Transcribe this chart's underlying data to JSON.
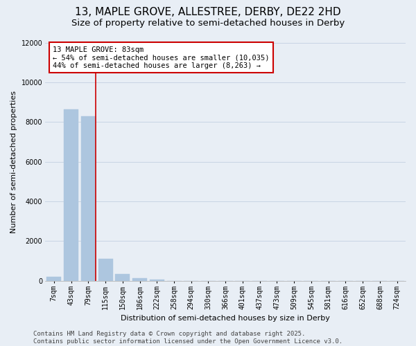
{
  "title_line1": "13, MAPLE GROVE, ALLESTREE, DERBY, DE22 2HD",
  "title_line2": "Size of property relative to semi-detached houses in Derby",
  "xlabel": "Distribution of semi-detached houses by size in Derby",
  "ylabel": "Number of semi-detached properties",
  "categories": [
    "7sqm",
    "43sqm",
    "79sqm",
    "115sqm",
    "150sqm",
    "186sqm",
    "222sqm",
    "258sqm",
    "294sqm",
    "330sqm",
    "366sqm",
    "401sqm",
    "437sqm",
    "473sqm",
    "509sqm",
    "545sqm",
    "581sqm",
    "616sqm",
    "652sqm",
    "688sqm",
    "724sqm"
  ],
  "values": [
    200,
    8650,
    8300,
    1100,
    340,
    120,
    60,
    0,
    0,
    0,
    0,
    0,
    0,
    0,
    0,
    0,
    0,
    0,
    0,
    0,
    0
  ],
  "bar_color": "#adc6df",
  "bar_edge_color": "#adc6df",
  "grid_color": "#c8d4e4",
  "background_color": "#e8eef5",
  "vline_x_index": 2,
  "vline_color": "#cc0000",
  "annotation_text": "13 MAPLE GROVE: 83sqm\n← 54% of semi-detached houses are smaller (10,035)\n44% of semi-detached houses are larger (8,263) →",
  "annotation_box_color": "#ffffff",
  "annotation_border_color": "#cc0000",
  "ylim": [
    0,
    12000
  ],
  "yticks": [
    0,
    2000,
    4000,
    6000,
    8000,
    10000,
    12000
  ],
  "footer_line1": "Contains HM Land Registry data © Crown copyright and database right 2025.",
  "footer_line2": "Contains public sector information licensed under the Open Government Licence v3.0.",
  "title_fontsize": 11,
  "subtitle_fontsize": 9.5,
  "axis_label_fontsize": 8,
  "tick_fontsize": 7,
  "annotation_fontsize": 7.5,
  "footer_fontsize": 6.5
}
